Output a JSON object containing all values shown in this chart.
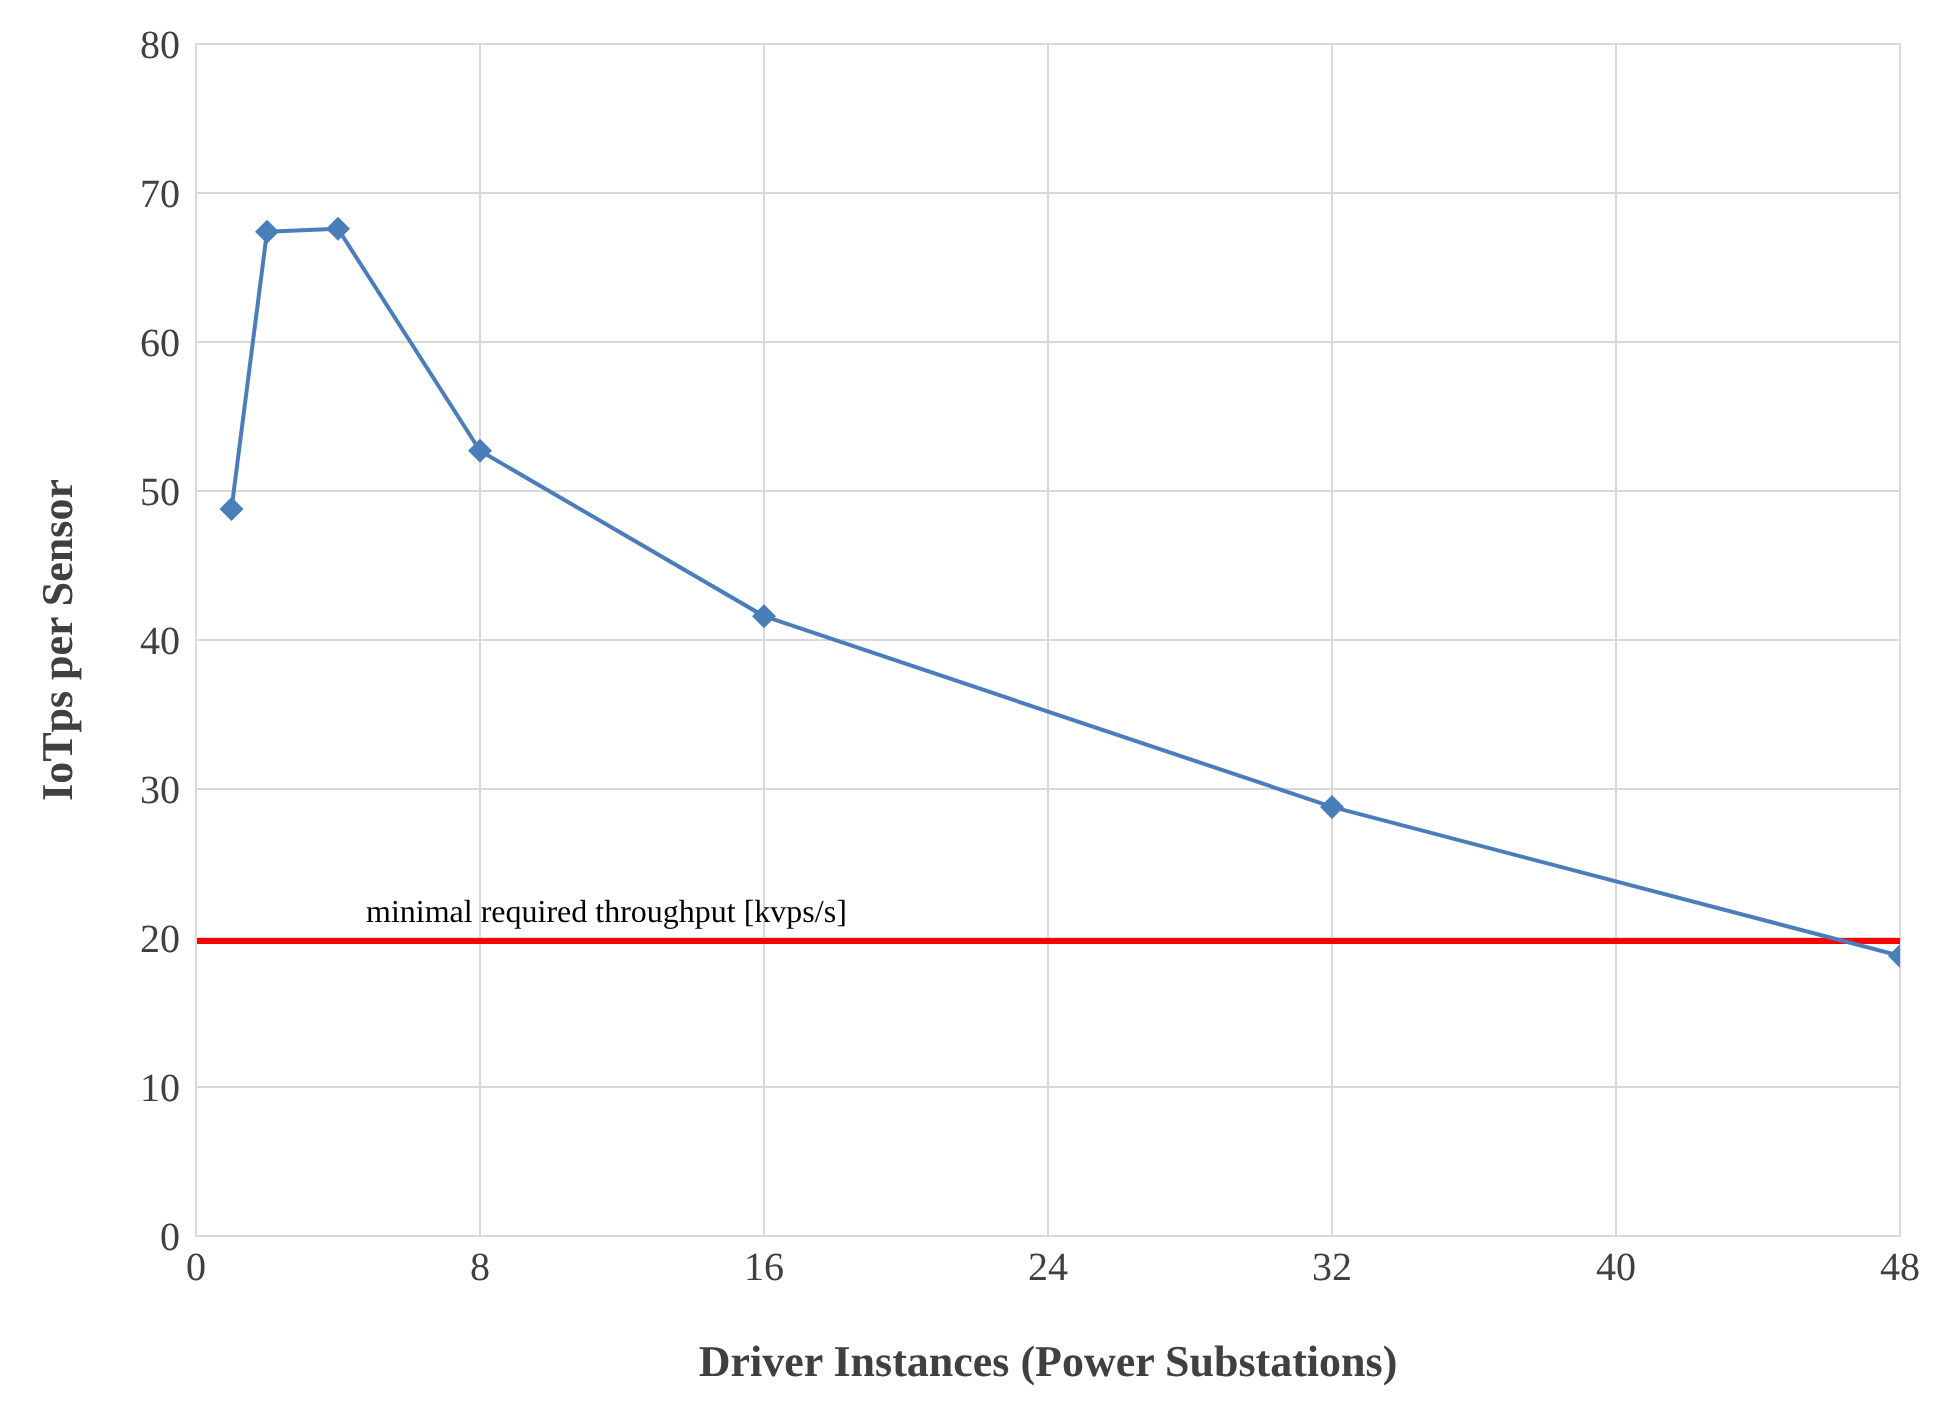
{
  "chart_data": {
    "type": "line",
    "xlabel": "Driver Instances (Power Substations)",
    "ylabel": "IoTps  per  Sensor",
    "x": [
      1,
      2,
      4,
      8,
      16,
      32,
      48
    ],
    "series": [
      {
        "color": "#4a7ebb",
        "values": [
          48.8,
          67.4,
          67.6,
          52.7,
          41.6,
          28.8,
          18.8
        ]
      }
    ],
    "xlim": [
      0,
      48
    ],
    "xticks": [
      0,
      8,
      16,
      24,
      32,
      40,
      48
    ],
    "ylim": [
      0,
      80
    ],
    "yticks": [
      0,
      10,
      20,
      30,
      40,
      50,
      60,
      70,
      80
    ],
    "grid": true,
    "marker": "diamond",
    "line_style": "solid",
    "legend": false,
    "ref_lines": [
      {
        "axis": "y",
        "value": 19.8,
        "label": "minimal required throughput [kvps/s]",
        "color": "#ff0000"
      }
    ]
  }
}
